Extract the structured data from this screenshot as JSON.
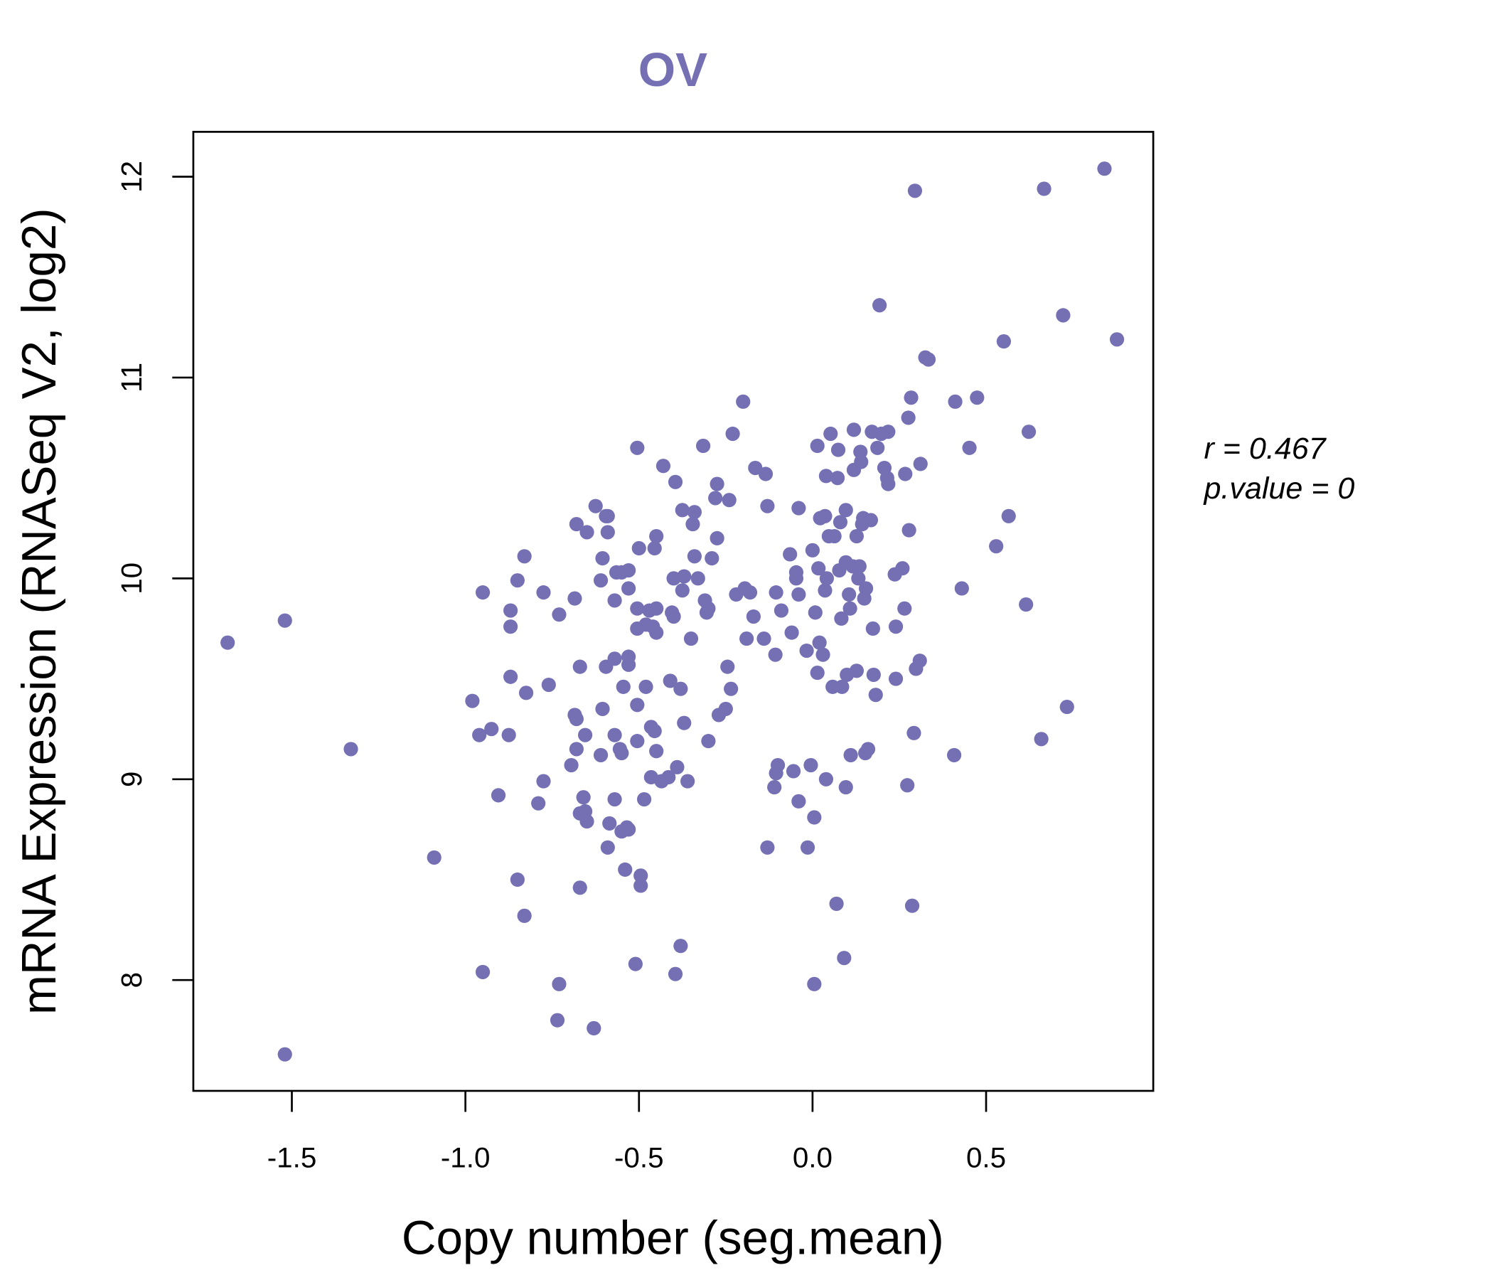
{
  "chart_data": {
    "type": "scatter",
    "title": "OV",
    "xlabel": "Copy number (seg.mean)",
    "ylabel": "mRNA Expression (RNASeq V2, log2)",
    "xlim": [
      -1.78,
      0.98
    ],
    "ylim": [
      7.48,
      12.22
    ],
    "xticks": [
      -1.5,
      -1.0,
      -0.5,
      0.0,
      0.5
    ],
    "xtick_labels": [
      "-1.5",
      "-1.0",
      "-0.5",
      "0.0",
      "0.5"
    ],
    "yticks": [
      8,
      9,
      10,
      11,
      12
    ],
    "ytick_labels": [
      "8",
      "9",
      "10",
      "11",
      "12"
    ],
    "grid": false,
    "point_color": "#7570B3",
    "annotations": {
      "r": "r = 0.467",
      "p": "p.value = 0"
    },
    "series": [
      {
        "name": "OV",
        "points": [
          [
            -1.685,
            9.68
          ],
          [
            -1.52,
            9.79
          ],
          [
            -1.52,
            7.63
          ],
          [
            -1.33,
            9.15
          ],
          [
            -1.09,
            8.61
          ],
          [
            -0.98,
            9.39
          ],
          [
            -0.96,
            9.22
          ],
          [
            -0.925,
            9.25
          ],
          [
            -0.95,
            9.93
          ],
          [
            -0.95,
            8.04
          ],
          [
            -0.905,
            8.92
          ],
          [
            -0.87,
            9.84
          ],
          [
            -0.87,
            9.76
          ],
          [
            -0.875,
            9.22
          ],
          [
            -0.87,
            9.51
          ],
          [
            -0.85,
            9.99
          ],
          [
            -0.83,
            10.11
          ],
          [
            -0.825,
            9.43
          ],
          [
            -0.85,
            8.5
          ],
          [
            -0.83,
            8.32
          ],
          [
            -0.79,
            8.88
          ],
          [
            -0.775,
            8.99
          ],
          [
            -0.775,
            9.93
          ],
          [
            -0.76,
            9.47
          ],
          [
            -0.73,
            9.82
          ],
          [
            -0.73,
            7.98
          ],
          [
            -0.735,
            7.8
          ],
          [
            -0.695,
            9.07
          ],
          [
            -0.685,
            9.9
          ],
          [
            -0.68,
            10.27
          ],
          [
            -0.685,
            9.32
          ],
          [
            -0.68,
            9.3
          ],
          [
            -0.68,
            9.15
          ],
          [
            -0.67,
            9.56
          ],
          [
            -0.67,
            8.83
          ],
          [
            -0.67,
            8.46
          ],
          [
            -0.66,
            8.91
          ],
          [
            -0.655,
            8.84
          ],
          [
            -0.65,
            8.79
          ],
          [
            -0.655,
            9.22
          ],
          [
            -0.65,
            10.23
          ],
          [
            -0.63,
            7.76
          ],
          [
            -0.625,
            10.36
          ],
          [
            -0.61,
            9.99
          ],
          [
            -0.61,
            9.12
          ],
          [
            -0.605,
            9.35
          ],
          [
            -0.605,
            10.1
          ],
          [
            -0.595,
            10.31
          ],
          [
            -0.59,
            10.31
          ],
          [
            -0.595,
            9.56
          ],
          [
            -0.59,
            10.23
          ],
          [
            -0.59,
            8.66
          ],
          [
            -0.585,
            8.78
          ],
          [
            -0.57,
            9.89
          ],
          [
            -0.57,
            9.22
          ],
          [
            -0.57,
            8.9
          ],
          [
            -0.57,
            9.6
          ],
          [
            -0.565,
            10.03
          ],
          [
            -0.555,
            9.15
          ],
          [
            -0.55,
            8.74
          ],
          [
            -0.55,
            9.13
          ],
          [
            -0.55,
            10.03
          ],
          [
            -0.545,
            9.46
          ],
          [
            -0.54,
            8.55
          ],
          [
            -0.535,
            8.76
          ],
          [
            -0.53,
            9.61
          ],
          [
            -0.53,
            9.57
          ],
          [
            -0.53,
            8.75
          ],
          [
            -0.53,
            9.95
          ],
          [
            -0.53,
            10.04
          ],
          [
            -0.51,
            8.08
          ],
          [
            -0.505,
            10.65
          ],
          [
            -0.505,
            9.75
          ],
          [
            -0.505,
            9.85
          ],
          [
            -0.505,
            9.37
          ],
          [
            -0.505,
            9.19
          ],
          [
            -0.5,
            10.15
          ],
          [
            -0.495,
            8.52
          ],
          [
            -0.495,
            8.47
          ],
          [
            -0.485,
            8.9
          ],
          [
            -0.48,
            9.46
          ],
          [
            -0.48,
            9.77
          ],
          [
            -0.47,
            9.84
          ],
          [
            -0.465,
            9.26
          ],
          [
            -0.465,
            9.01
          ],
          [
            -0.46,
            9.76
          ],
          [
            -0.455,
            9.24
          ],
          [
            -0.455,
            10.15
          ],
          [
            -0.45,
            10.21
          ],
          [
            -0.45,
            9.14
          ],
          [
            -0.45,
            9.73
          ],
          [
            -0.45,
            9.85
          ],
          [
            -0.435,
            8.99
          ],
          [
            -0.43,
            10.56
          ],
          [
            -0.415,
            9.01
          ],
          [
            -0.41,
            9.49
          ],
          [
            -0.405,
            9.83
          ],
          [
            -0.4,
            10.0
          ],
          [
            -0.4,
            9.81
          ],
          [
            -0.395,
            10.48
          ],
          [
            -0.395,
            8.03
          ],
          [
            -0.39,
            9.06
          ],
          [
            -0.38,
            8.17
          ],
          [
            -0.38,
            9.45
          ],
          [
            -0.375,
            9.94
          ],
          [
            -0.375,
            10.34
          ],
          [
            -0.37,
            10.01
          ],
          [
            -0.37,
            9.28
          ],
          [
            -0.36,
            8.99
          ],
          [
            -0.35,
            9.7
          ],
          [
            -0.345,
            10.27
          ],
          [
            -0.34,
            10.33
          ],
          [
            -0.34,
            10.11
          ],
          [
            -0.33,
            10.0
          ],
          [
            -0.315,
            10.66
          ],
          [
            -0.31,
            9.89
          ],
          [
            -0.305,
            9.83
          ],
          [
            -0.3,
            9.85
          ],
          [
            -0.3,
            9.19
          ],
          [
            -0.29,
            10.1
          ],
          [
            -0.28,
            10.4
          ],
          [
            -0.275,
            10.47
          ],
          [
            -0.275,
            10.2
          ],
          [
            -0.27,
            9.32
          ],
          [
            -0.25,
            9.35
          ],
          [
            -0.245,
            9.56
          ],
          [
            -0.24,
            10.39
          ],
          [
            -0.235,
            9.45
          ],
          [
            -0.23,
            10.72
          ],
          [
            -0.22,
            9.92
          ],
          [
            -0.2,
            10.88
          ],
          [
            -0.195,
            9.95
          ],
          [
            -0.19,
            9.7
          ],
          [
            -0.18,
            9.93
          ],
          [
            -0.17,
            9.81
          ],
          [
            -0.165,
            10.55
          ],
          [
            -0.135,
            10.52
          ],
          [
            -0.14,
            9.7
          ],
          [
            -0.13,
            10.36
          ],
          [
            -0.13,
            8.66
          ],
          [
            -0.11,
            8.96
          ],
          [
            -0.107,
            9.62
          ],
          [
            -0.105,
            9.93
          ],
          [
            -0.105,
            9.03
          ],
          [
            -0.1,
            9.07
          ],
          [
            -0.09,
            9.84
          ],
          [
            -0.065,
            10.12
          ],
          [
            -0.06,
            9.73
          ],
          [
            -0.055,
            9.04
          ],
          [
            -0.047,
            10.03
          ],
          [
            -0.047,
            10.0
          ],
          [
            -0.04,
            10.35
          ],
          [
            -0.04,
            8.89
          ],
          [
            -0.04,
            9.92
          ],
          [
            -0.017,
            9.64
          ],
          [
            0.0,
            10.14
          ],
          [
            -0.005,
            9.07
          ],
          [
            -0.014,
            8.66
          ],
          [
            0.005,
            7.98
          ],
          [
            0.005,
            8.81
          ],
          [
            0.008,
            9.83
          ],
          [
            0.014,
            9.53
          ],
          [
            0.014,
            10.66
          ],
          [
            0.017,
            10.05
          ],
          [
            0.02,
            9.68
          ],
          [
            0.022,
            10.3
          ],
          [
            0.03,
            9.62
          ],
          [
            0.036,
            10.31
          ],
          [
            0.039,
            9.0
          ],
          [
            0.039,
            10.51
          ],
          [
            0.041,
            10.0
          ],
          [
            0.036,
            9.94
          ],
          [
            0.047,
            10.21
          ],
          [
            0.052,
            10.72
          ],
          [
            0.058,
            9.46
          ],
          [
            0.063,
            10.21
          ],
          [
            0.069,
            8.38
          ],
          [
            0.072,
            10.5
          ],
          [
            0.074,
            10.64
          ],
          [
            0.08,
            10.28
          ],
          [
            0.077,
            10.04
          ],
          [
            0.083,
            9.8
          ],
          [
            0.085,
            9.46
          ],
          [
            0.091,
            8.11
          ],
          [
            0.096,
            8.96
          ],
          [
            0.096,
            10.34
          ],
          [
            0.096,
            10.08
          ],
          [
            0.099,
            9.52
          ],
          [
            0.105,
            9.92
          ],
          [
            0.108,
            9.85
          ],
          [
            0.11,
            9.12
          ],
          [
            0.116,
            10.06
          ],
          [
            0.119,
            10.54
          ],
          [
            0.119,
            10.74
          ],
          [
            0.127,
            9.54
          ],
          [
            0.127,
            10.21
          ],
          [
            0.132,
            10.0
          ],
          [
            0.135,
            10.06
          ],
          [
            0.138,
            10.63
          ],
          [
            0.14,
            10.58
          ],
          [
            0.143,
            10.27
          ],
          [
            0.146,
            10.3
          ],
          [
            0.149,
            9.9
          ],
          [
            0.154,
            9.95
          ],
          [
            0.152,
            9.13
          ],
          [
            0.16,
            9.15
          ],
          [
            0.168,
            10.29
          ],
          [
            0.171,
            10.73
          ],
          [
            0.174,
            9.75
          ],
          [
            0.176,
            9.52
          ],
          [
            0.182,
            9.42
          ],
          [
            0.187,
            10.65
          ],
          [
            0.193,
            11.36
          ],
          [
            0.198,
            10.72
          ],
          [
            0.207,
            10.55
          ],
          [
            0.215,
            10.5
          ],
          [
            0.218,
            10.47
          ],
          [
            0.218,
            10.73
          ],
          [
            0.237,
            10.02
          ],
          [
            0.24,
            9.76
          ],
          [
            0.24,
            9.5
          ],
          [
            0.259,
            10.05
          ],
          [
            0.265,
            9.85
          ],
          [
            0.267,
            10.52
          ],
          [
            0.273,
            8.97
          ],
          [
            0.276,
            10.8
          ],
          [
            0.278,
            10.24
          ],
          [
            0.287,
            8.37
          ],
          [
            0.284,
            10.9
          ],
          [
            0.292,
            9.23
          ],
          [
            0.295,
            11.93
          ],
          [
            0.298,
            9.55
          ],
          [
            0.309,
            9.59
          ],
          [
            0.311,
            10.57
          ],
          [
            0.325,
            11.1
          ],
          [
            0.334,
            11.09
          ],
          [
            0.408,
            9.12
          ],
          [
            0.411,
            10.88
          ],
          [
            0.43,
            9.95
          ],
          [
            0.452,
            10.65
          ],
          [
            0.474,
            10.9
          ],
          [
            0.529,
            10.16
          ],
          [
            0.551,
            11.18
          ],
          [
            0.565,
            10.31
          ],
          [
            0.615,
            9.87
          ],
          [
            0.623,
            10.73
          ],
          [
            0.659,
            9.2
          ],
          [
            0.667,
            11.94
          ],
          [
            0.722,
            11.31
          ],
          [
            0.733,
            9.36
          ],
          [
            0.841,
            12.04
          ],
          [
            0.877,
            11.19
          ]
        ]
      }
    ]
  }
}
